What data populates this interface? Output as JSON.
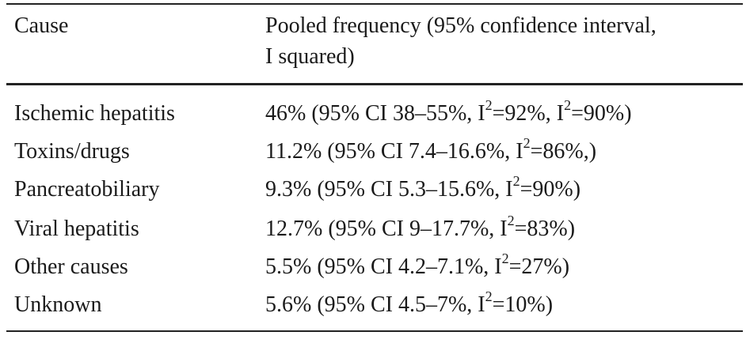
{
  "header": {
    "cause": "Cause",
    "frequency_line1": "Pooled frequency (95% confidence interval,",
    "frequency_line2": "I squared)"
  },
  "rows": [
    {
      "cause": "Ischemic hepatitis",
      "parts": [
        "46% (95% CI 38–55%, I",
        "2",
        "=92%, I",
        "2",
        "=90%)"
      ]
    },
    {
      "cause": "Toxins/drugs",
      "parts": [
        "11.2% (95% CI 7.4–16.6%, I",
        "2",
        "=86%,)"
      ]
    },
    {
      "cause": "Pancreatobiliary",
      "parts": [
        "9.3% (95% CI 5.3–15.6%, I",
        "2",
        "=90%)"
      ]
    },
    {
      "cause": "Viral hepatitis",
      "parts": [
        "12.7% (95% CI 9–17.7%, I",
        "2",
        "=83%)"
      ]
    },
    {
      "cause": "Other causes",
      "parts": [
        "5.5% (95% CI 4.2–7.1%, I",
        "2",
        "=27%)"
      ]
    },
    {
      "cause": "Unknown",
      "parts": [
        "5.6% (95% CI 4.5–7%, I",
        "2",
        "=10%)"
      ]
    }
  ]
}
